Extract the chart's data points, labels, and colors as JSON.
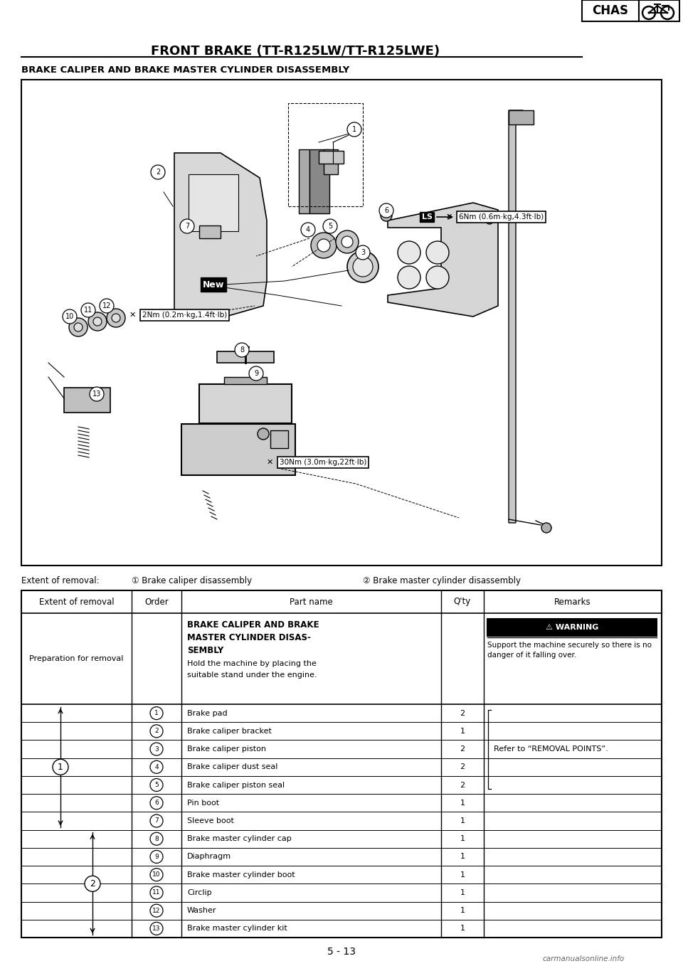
{
  "title": "FRONT BRAKE (TT-R125LW/TT-R125LWE)",
  "chas_label": "CHAS",
  "section_title": "BRAKE CALIPER AND BRAKE MASTER CYLINDER DISASSEMBLY",
  "extent_label": "Extent of removal:",
  "extent_1": "① Brake caliper disassembly",
  "extent_2": "② Brake master cylinder disassembly",
  "table_headers": [
    "Extent of removal",
    "Order",
    "Part name",
    "Q'ty",
    "Remarks"
  ],
  "prep_row_col1": "Preparation for removal",
  "prep_row_partname_line1": "BRAKE CALIPER AND BRAKE",
  "prep_row_partname_line2": "MASTER CYLINDER DISAS-",
  "prep_row_partname_line3": "SEMBLY",
  "prep_row_partname_normal": "Hold the machine by placing the\nsuitable stand under the engine.",
  "warning_title": "⚠ WARNING",
  "warning_text": "Support the machine securely so there is no\ndanger of it falling over.",
  "parts": [
    [
      "1",
      "Brake pad",
      "2"
    ],
    [
      "2",
      "Brake caliper bracket",
      "1"
    ],
    [
      "3",
      "Brake caliper piston",
      "2"
    ],
    [
      "4",
      "Brake caliper dust seal",
      "2"
    ],
    [
      "5",
      "Brake caliper piston seal",
      "2"
    ],
    [
      "6",
      "Pin boot",
      "1"
    ],
    [
      "7",
      "Sleeve boot",
      "1"
    ],
    [
      "8",
      "Brake master cylinder cap",
      "1"
    ],
    [
      "9",
      "Diaphragm",
      "1"
    ],
    [
      "10",
      "Brake master cylinder boot",
      "1"
    ],
    [
      "11",
      "Circlip",
      "1"
    ],
    [
      "12",
      "Washer",
      "1"
    ],
    [
      "13",
      "Brake master cylinder kit",
      "1"
    ]
  ],
  "remarks_text": "Refer to “REMOVAL POINTS”.",
  "page_number": "5 - 13",
  "bg_color": "#ffffff",
  "torque_1": "6Nm (0.6m·kg,4.3ft·lb)",
  "torque_2": "2Nm (0.2m·kg,1.4ft·lb)",
  "torque_3": "30Nm (3.0m·kg,22ft·lb)",
  "new_label": "New",
  "ls_label": "LS",
  "watermark": "carmanualsonline.info"
}
